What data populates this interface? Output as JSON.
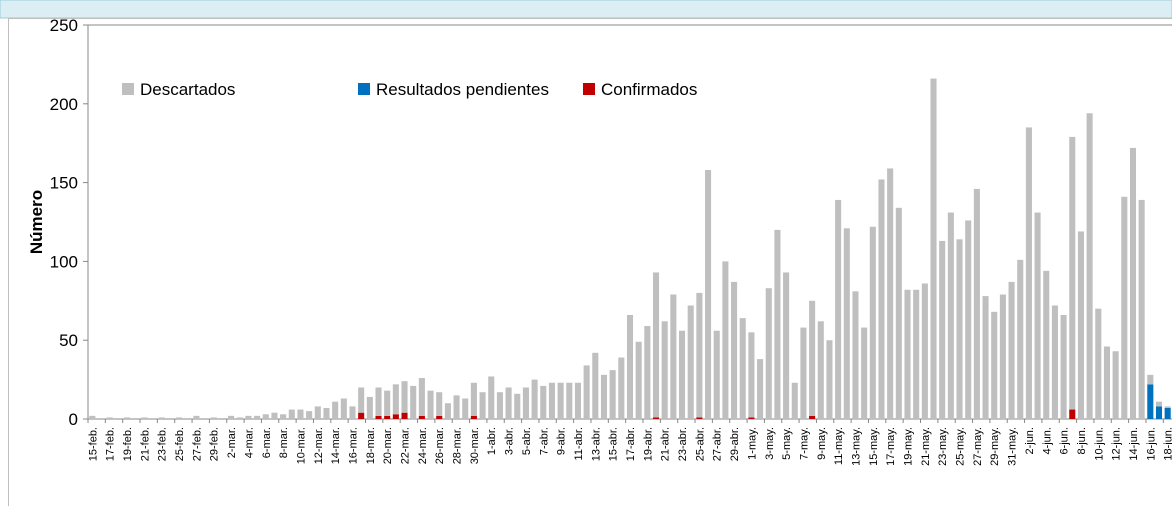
{
  "chart_data": {
    "type": "stacked_bar",
    "y_label": "Número",
    "ylim": [
      0,
      250
    ],
    "yticks": [
      0,
      50,
      100,
      150,
      200,
      250
    ],
    "categories": [
      "15-feb.",
      null,
      "17-feb.",
      null,
      "19-feb.",
      null,
      "21-feb.",
      null,
      "23-feb.",
      null,
      "25-feb.",
      null,
      "27-feb.",
      null,
      "29-feb.",
      null,
      "2-mar.",
      null,
      "4-mar.",
      null,
      "6-mar.",
      null,
      "8-mar.",
      null,
      "10-mar.",
      null,
      "12-mar.",
      null,
      "14-mar.",
      null,
      "16-mar.",
      null,
      "18-mar.",
      null,
      "20-mar.",
      null,
      "22-mar.",
      null,
      "24-mar.",
      null,
      "26-mar.",
      null,
      "28-mar.",
      null,
      "30-mar.",
      null,
      "1-abr.",
      null,
      "3-abr.",
      null,
      "5-abr.",
      null,
      "7-abr.",
      null,
      "9-abr.",
      null,
      "11-abr.",
      null,
      "13-abr.",
      null,
      "15-abr.",
      null,
      "17-abr.",
      null,
      "19-abr.",
      null,
      "21-abr.",
      null,
      "23-abr.",
      null,
      "25-abr.",
      null,
      "27-abr.",
      null,
      "29-abr.",
      null,
      "1-may.",
      null,
      "3-may.",
      null,
      "5-may.",
      null,
      "7-may.",
      null,
      "9-may.",
      null,
      "11-may.",
      null,
      "13-may.",
      null,
      "15-may.",
      null,
      "17-may.",
      null,
      "19-may.",
      null,
      "21-may.",
      null,
      "23-may.",
      null,
      "25-may.",
      null,
      "27-may.",
      null,
      "29-may.",
      null,
      "31-may.",
      null,
      "2-jun.",
      null,
      "4-jun.",
      null,
      "6-jun.",
      null,
      "8-jun.",
      null,
      "10-jun.",
      null,
      "12-jun.",
      null,
      "14-jun.",
      null,
      "16-jun.",
      null,
      "18-jun."
    ],
    "series": [
      {
        "name": "Descartados",
        "color": "#bfbfbf",
        "values": [
          2,
          0,
          1,
          0,
          1,
          0,
          1,
          0,
          1,
          0,
          1,
          0,
          2,
          0,
          1,
          0,
          2,
          1,
          2,
          2,
          3,
          4,
          3,
          6,
          6,
          5,
          8,
          7,
          11,
          13,
          8,
          16,
          14,
          18,
          16,
          19,
          20,
          21,
          24,
          18,
          15,
          10,
          15,
          13,
          21,
          17,
          27,
          17,
          20,
          16,
          20,
          25,
          21,
          23,
          23,
          23,
          23,
          34,
          42,
          28,
          31,
          39,
          66,
          49,
          59,
          92,
          62,
          79,
          56,
          72,
          79,
          158,
          56,
          100,
          87,
          64,
          54,
          38,
          83,
          120,
          93,
          23,
          58,
          73,
          62,
          50,
          139,
          121,
          81,
          58,
          122,
          152,
          159,
          134,
          82,
          82,
          86,
          216,
          113,
          131,
          114,
          126,
          146,
          78,
          68,
          79,
          87,
          101,
          185,
          131,
          94,
          72,
          66,
          173,
          119,
          194,
          70,
          46,
          43,
          141,
          172,
          139,
          6,
          3,
          1
        ]
      },
      {
        "name": "Resultados pendientes",
        "color": "#0070c0",
        "values": [
          0,
          0,
          0,
          0,
          0,
          0,
          0,
          0,
          0,
          0,
          0,
          0,
          0,
          0,
          0,
          0,
          0,
          0,
          0,
          0,
          0,
          0,
          0,
          0,
          0,
          0,
          0,
          0,
          0,
          0,
          0,
          0,
          0,
          0,
          0,
          0,
          0,
          0,
          0,
          0,
          0,
          0,
          0,
          0,
          0,
          0,
          0,
          0,
          0,
          0,
          0,
          0,
          0,
          0,
          0,
          0,
          0,
          0,
          0,
          0,
          0,
          0,
          0,
          0,
          0,
          0,
          0,
          0,
          0,
          0,
          0,
          0,
          0,
          0,
          0,
          0,
          0,
          0,
          0,
          0,
          0,
          0,
          0,
          0,
          0,
          0,
          0,
          0,
          0,
          0,
          0,
          0,
          0,
          0,
          0,
          0,
          0,
          0,
          0,
          0,
          0,
          0,
          0,
          0,
          0,
          0,
          0,
          0,
          0,
          0,
          0,
          0,
          0,
          0,
          0,
          0,
          0,
          0,
          0,
          0,
          0,
          0,
          22,
          8,
          7
        ]
      },
      {
        "name": "Confirmados",
        "color": "#c00000",
        "values": [
          0,
          0,
          0,
          0,
          0,
          0,
          0,
          0,
          0,
          0,
          0,
          0,
          0,
          0,
          0,
          0,
          0,
          0,
          0,
          0,
          0,
          0,
          0,
          0,
          0,
          0,
          0,
          0,
          0,
          0,
          0,
          4,
          0,
          2,
          2,
          3,
          4,
          0,
          2,
          0,
          2,
          0,
          0,
          0,
          2,
          0,
          0,
          0,
          0,
          0,
          0,
          0,
          0,
          0,
          0,
          0,
          0,
          0,
          0,
          0,
          0,
          0,
          0,
          0,
          0,
          1,
          0,
          0,
          0,
          0,
          1,
          0,
          0,
          0,
          0,
          0,
          1,
          0,
          0,
          0,
          0,
          0,
          0,
          2,
          0,
          0,
          0,
          0,
          0,
          0,
          0,
          0,
          0,
          0,
          0,
          0,
          0,
          0,
          0,
          0,
          0,
          0,
          0,
          0,
          0,
          0,
          0,
          0,
          0,
          0,
          0,
          0,
          0,
          6,
          0,
          0,
          0,
          0,
          0,
          0,
          0,
          0,
          0,
          0,
          0
        ]
      }
    ]
  }
}
